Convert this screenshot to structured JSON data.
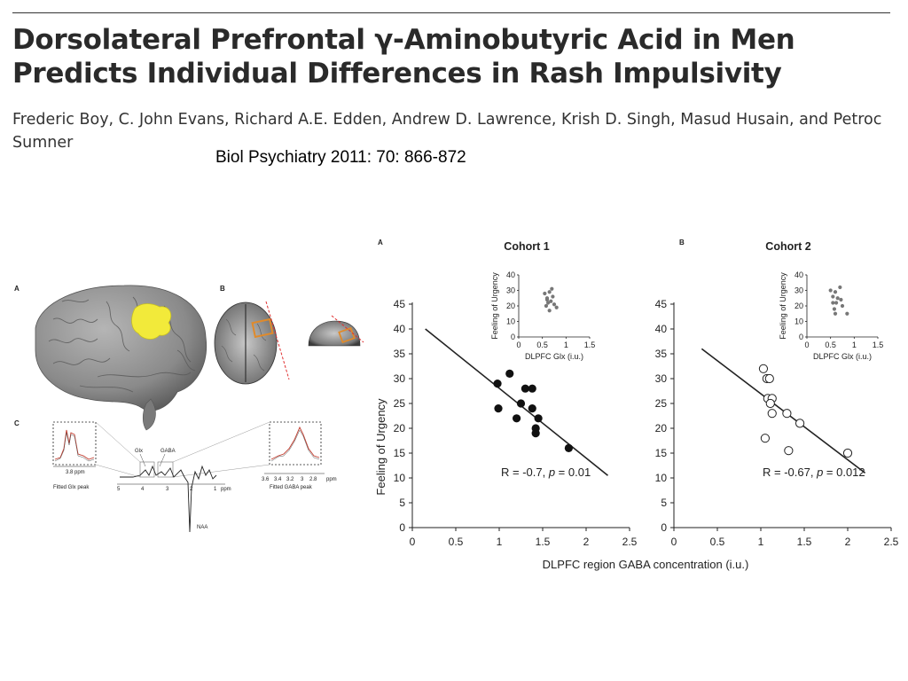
{
  "paper": {
    "title": "Dorsolateral Prefrontal γ-Aminobutyric Acid in Men Predicts Individual Differences in Rash Impulsivity",
    "authors": "Frederic Boy, C. John Evans, Richard A.E. Edden, Andrew D. Lawrence, Krish D. Singh, Masud Husain, and Petroc Sumner",
    "citation": "Biol Psychiatry 2011: 70: 866-872"
  },
  "figure_left": {
    "panel_a": "A",
    "panel_b": "B",
    "panel_c": "C",
    "glx_label": "Glx",
    "gaba_label": "GABA",
    "naa_label": "NAA",
    "spectrum_ticks": [
      "5",
      "4",
      "3",
      "2",
      "1"
    ],
    "ppm_label": "ppm",
    "glx_inset_tick": "3.8 ppm",
    "glx_inset_caption": "Fitted Glx peak",
    "gaba_inset_ticks": [
      "3.6",
      "3.4",
      "3.2",
      "3",
      "2.8"
    ],
    "gaba_inset_ppm": "ppm",
    "gaba_inset_caption": "Fitted GABA peak",
    "colors": {
      "voxel": "#f2ea3a",
      "voxel_outline": "#e08a2a",
      "cut_line": "#e03030",
      "brain": "#8a8a8a"
    }
  },
  "figure_right": {
    "panel_a": "A",
    "panel_b": "B",
    "x_axis_label": "DLPFC region GABA concentration (i.u.)",
    "y_axis_label": "Feeling of Urgency",
    "inset_x_label": "DLPFC Glx (i.u.)",
    "inset_y_label": "Feeling of Urgency"
  },
  "chart_data": [
    {
      "type": "scatter",
      "title": "Cohort 1",
      "xlabel": "DLPFC region GABA concentration (i.u.)",
      "ylabel": "Feeling of Urgency",
      "xlim": [
        0,
        2.5
      ],
      "ylim": [
        0,
        45
      ],
      "x_ticks": [
        "0",
        "0.5",
        "1",
        "1.5",
        "2",
        "2.5"
      ],
      "y_ticks": [
        "0",
        "5",
        "10",
        "15",
        "20",
        "25",
        "30",
        "35",
        "40",
        "45"
      ],
      "marker": "filled",
      "points": [
        {
          "x": 0.98,
          "y": 29
        },
        {
          "x": 0.99,
          "y": 24
        },
        {
          "x": 1.12,
          "y": 31
        },
        {
          "x": 1.2,
          "y": 22
        },
        {
          "x": 1.25,
          "y": 25
        },
        {
          "x": 1.3,
          "y": 28
        },
        {
          "x": 1.38,
          "y": 28
        },
        {
          "x": 1.38,
          "y": 24
        },
        {
          "x": 1.42,
          "y": 20
        },
        {
          "x": 1.42,
          "y": 19
        },
        {
          "x": 1.45,
          "y": 22
        },
        {
          "x": 1.8,
          "y": 16
        }
      ],
      "fit_line": [
        {
          "x": 0.15,
          "y": 40
        },
        {
          "x": 2.25,
          "y": 10.5
        }
      ],
      "annotation": {
        "prefix": "R = -0.7, ",
        "p": "p",
        "suffix": " = 0.01"
      },
      "inset": {
        "xlabel": "DLPFC Glx (i.u.)",
        "ylabel": "Feeling of Urgency",
        "xlim": [
          0,
          1.5
        ],
        "ylim": [
          0,
          40
        ],
        "x_ticks": [
          "0",
          "0.5",
          "1",
          "1.5"
        ],
        "y_ticks": [
          "0",
          "10",
          "20",
          "30",
          "40"
        ],
        "points": [
          {
            "x": 0.55,
            "y": 28
          },
          {
            "x": 0.6,
            "y": 25
          },
          {
            "x": 0.62,
            "y": 22
          },
          {
            "x": 0.65,
            "y": 29
          },
          {
            "x": 0.7,
            "y": 31
          },
          {
            "x": 0.58,
            "y": 20
          },
          {
            "x": 0.68,
            "y": 23
          },
          {
            "x": 0.72,
            "y": 26
          },
          {
            "x": 0.75,
            "y": 21
          },
          {
            "x": 0.65,
            "y": 17
          },
          {
            "x": 0.8,
            "y": 19
          },
          {
            "x": 0.6,
            "y": 24
          }
        ]
      }
    },
    {
      "type": "scatter",
      "title": "Cohort 2",
      "xlabel": "DLPFC region GABA concentration (i.u.)",
      "ylabel": "",
      "xlim": [
        0,
        2.5
      ],
      "ylim": [
        0,
        45
      ],
      "x_ticks": [
        "0",
        "0.5",
        "1",
        "1.5",
        "2",
        "2.5"
      ],
      "y_ticks": [
        "0",
        "5",
        "10",
        "15",
        "20",
        "25",
        "30",
        "35",
        "40",
        "45"
      ],
      "marker": "open",
      "points": [
        {
          "x": 1.03,
          "y": 32
        },
        {
          "x": 1.07,
          "y": 30
        },
        {
          "x": 1.1,
          "y": 30
        },
        {
          "x": 1.08,
          "y": 26
        },
        {
          "x": 1.13,
          "y": 26
        },
        {
          "x": 1.11,
          "y": 25
        },
        {
          "x": 1.13,
          "y": 23
        },
        {
          "x": 1.05,
          "y": 18
        },
        {
          "x": 1.3,
          "y": 23
        },
        {
          "x": 1.45,
          "y": 21
        },
        {
          "x": 1.32,
          "y": 15.5
        },
        {
          "x": 2.0,
          "y": 15
        }
      ],
      "fit_line": [
        {
          "x": 0.32,
          "y": 36
        },
        {
          "x": 2.2,
          "y": 11
        }
      ],
      "annotation": {
        "prefix": "R = -0.67, ",
        "p": "p",
        "suffix": " = 0.012"
      },
      "inset": {
        "xlabel": "DLPFC Glx (i.u.)",
        "ylabel": "Feeling of Urgency",
        "xlim": [
          0,
          1.5
        ],
        "ylim": [
          0,
          40
        ],
        "x_ticks": [
          "0",
          "0.5",
          "1",
          "1.5"
        ],
        "y_ticks": [
          "0",
          "10",
          "20",
          "30",
          "40"
        ],
        "points": [
          {
            "x": 0.5,
            "y": 30
          },
          {
            "x": 0.55,
            "y": 26
          },
          {
            "x": 0.6,
            "y": 29
          },
          {
            "x": 0.62,
            "y": 22
          },
          {
            "x": 0.65,
            "y": 25
          },
          {
            "x": 0.7,
            "y": 32
          },
          {
            "x": 0.72,
            "y": 24
          },
          {
            "x": 0.58,
            "y": 18
          },
          {
            "x": 0.6,
            "y": 15
          },
          {
            "x": 0.75,
            "y": 20
          },
          {
            "x": 0.85,
            "y": 15
          },
          {
            "x": 0.55,
            "y": 22
          }
        ]
      }
    }
  ]
}
